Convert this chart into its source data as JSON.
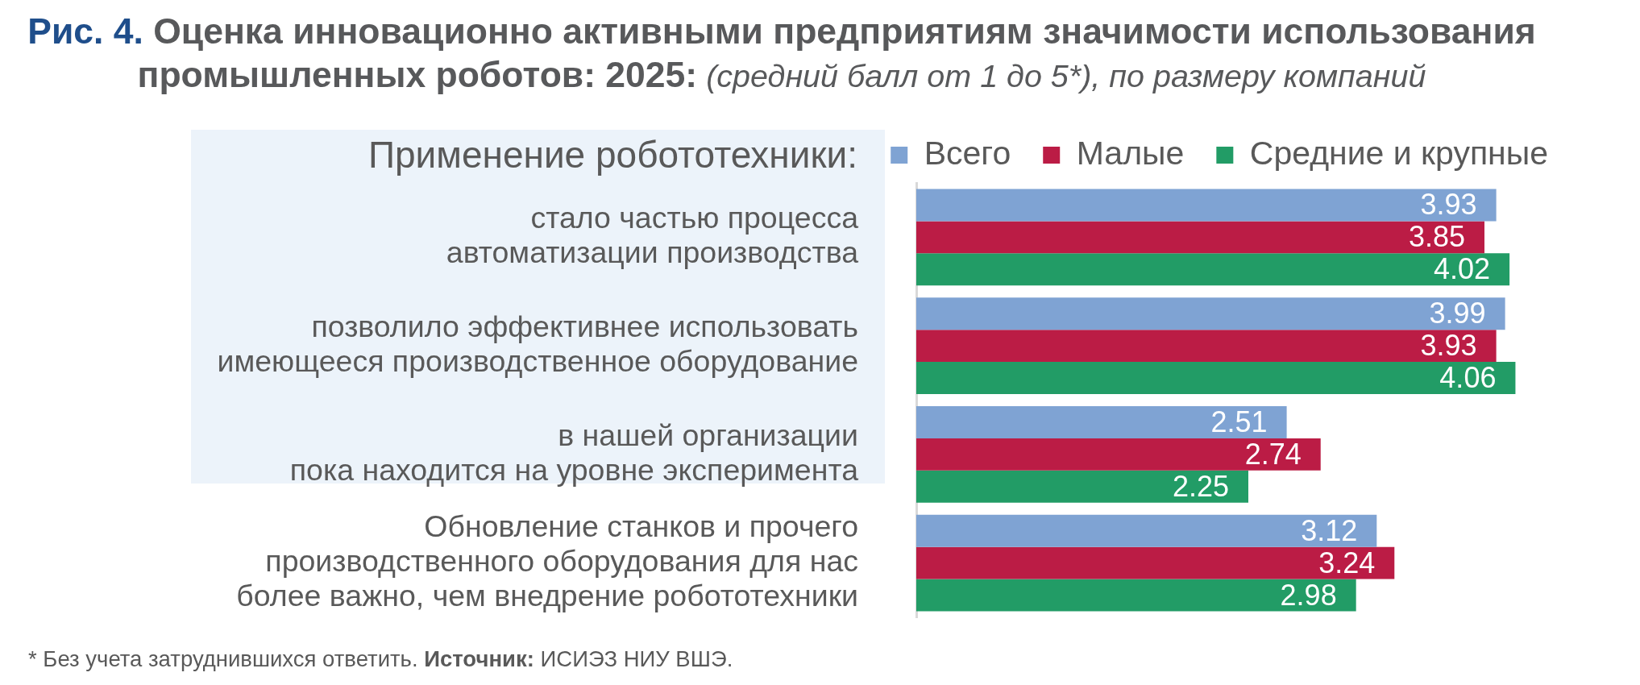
{
  "chart_data": {
    "type": "bar",
    "orientation": "horizontal",
    "title": "Рис. 4. Оценка инновационно активными предприятиям значимости использования промышленных роботов: 2025:",
    "subtitle": "(средний балл от 1 до 5*), по размеру компаний",
    "categories": [
      "стало частью процесса\nавтоматизации производства",
      "позволило эффективнее использовать\nимеющееся производственное оборудование",
      "в нашей организации\nпока находится на уровне эксперимента",
      "Обновление станков и прочего\nпроизводственного оборудования для нас\nболее важно, чем внедрение робототехники"
    ],
    "series": [
      {
        "name": "Всего",
        "color": "#7fa3d3",
        "values": [
          3.93,
          3.99,
          2.51,
          3.12
        ]
      },
      {
        "name": "Малые",
        "color": "#bb1c45",
        "values": [
          3.85,
          3.93,
          2.74,
          3.24
        ]
      },
      {
        "name": "Средние и крупные",
        "color": "#229c66",
        "values": [
          4.02,
          4.06,
          2.25,
          2.98
        ]
      }
    ],
    "tick_labels": "y",
    "legend": "top right",
    "data_labels": true,
    "annotations": [
      "Применение робототехники:",
      "* Без учета затруднившихся ответить.",
      "Источник: ИСИЭЗ НИУ ВШЭ."
    ]
  }
}
